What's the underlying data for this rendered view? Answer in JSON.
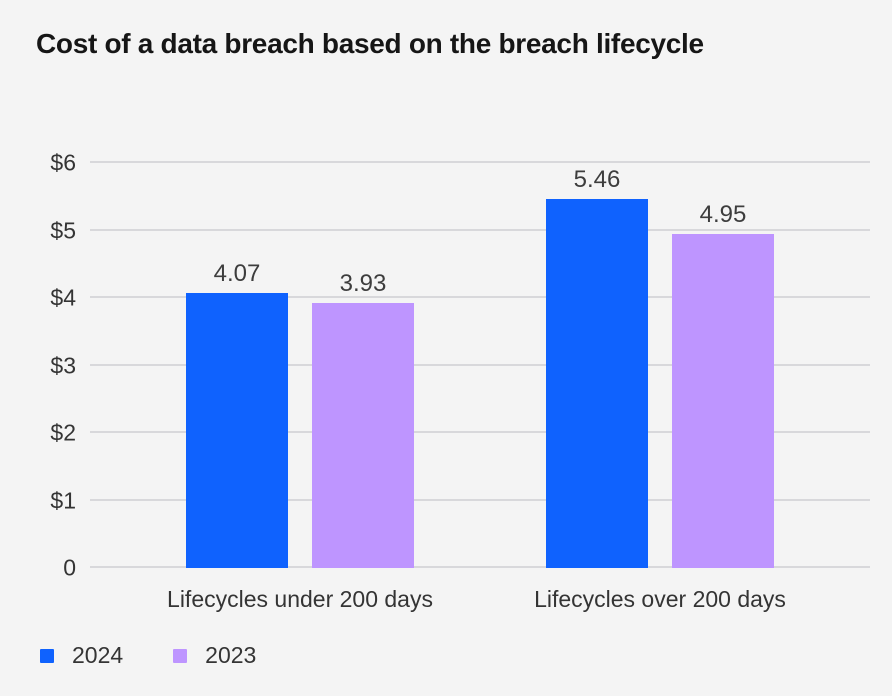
{
  "title": "Cost of a data breach based on the breach lifecycle",
  "colors": {
    "background": "#f4f4f4",
    "title_text": "#161616",
    "axis_text": "#343434",
    "label_text": "#3d3d3d",
    "gridline": "#d8d8db",
    "series_2024": "#0f62fe",
    "series_2023": "#be95ff"
  },
  "chart_data": {
    "type": "bar",
    "title": "Cost of a data breach based on the breach lifecycle",
    "categories": [
      "Lifecycles under 200 days",
      "Lifecycles over 200 days"
    ],
    "series": [
      {
        "name": "2024",
        "color": "#0f62fe",
        "values": [
          4.07,
          5.46
        ]
      },
      {
        "name": "2023",
        "color": "#be95ff",
        "values": [
          3.93,
          4.95
        ]
      }
    ],
    "data_labels": [
      [
        "4.07",
        "5.46"
      ],
      [
        "3.93",
        "4.95"
      ]
    ],
    "y_ticks": [
      {
        "label": "$6",
        "value": 6
      },
      {
        "label": "$5",
        "value": 5
      },
      {
        "label": "$4",
        "value": 4
      },
      {
        "label": "$3",
        "value": 3
      },
      {
        "label": "$2",
        "value": 2
      },
      {
        "label": "$1",
        "value": 1
      },
      {
        "label": "0",
        "value": 0
      }
    ],
    "ylim": [
      0,
      6
    ],
    "grid": true,
    "legend_position": "bottom-left",
    "legend": [
      "2024",
      "2023"
    ]
  }
}
